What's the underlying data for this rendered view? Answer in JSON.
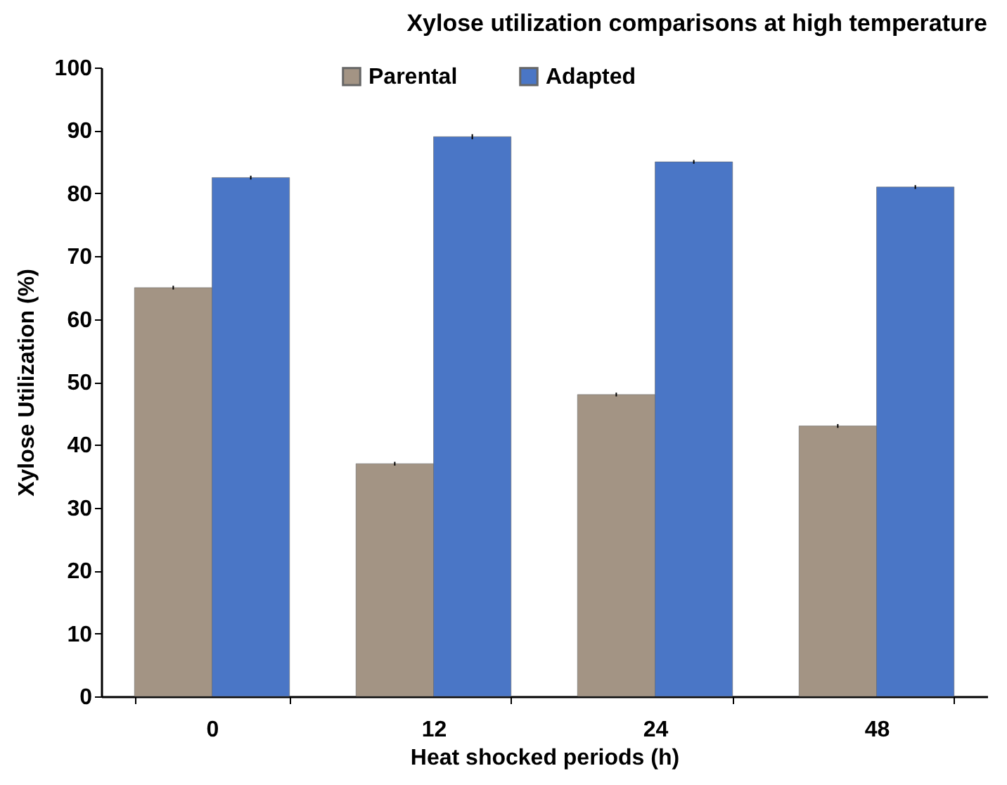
{
  "chart_data": {
    "type": "bar",
    "title": "Xylose utilization  comparisons at high temperature",
    "xlabel": "Heat shocked periods (h)",
    "ylabel": "Xylose Utilization (%)",
    "categories": [
      "0",
      "12",
      "24",
      "48"
    ],
    "series": [
      {
        "name": "Parental",
        "color": "#a39484",
        "values": [
          65,
          37,
          48,
          43
        ],
        "errors": [
          0.3,
          0.3,
          0.3,
          0.3
        ]
      },
      {
        "name": "Adapted",
        "color": "#4a76c6",
        "values": [
          82.5,
          89,
          85,
          81
        ],
        "errors": [
          0.3,
          0.4,
          0.3,
          0.3
        ]
      }
    ],
    "ylim": [
      0,
      100
    ],
    "yticks": [
      0,
      10,
      20,
      30,
      40,
      50,
      60,
      70,
      80,
      90,
      100
    ],
    "grid": false,
    "legend": "top"
  }
}
